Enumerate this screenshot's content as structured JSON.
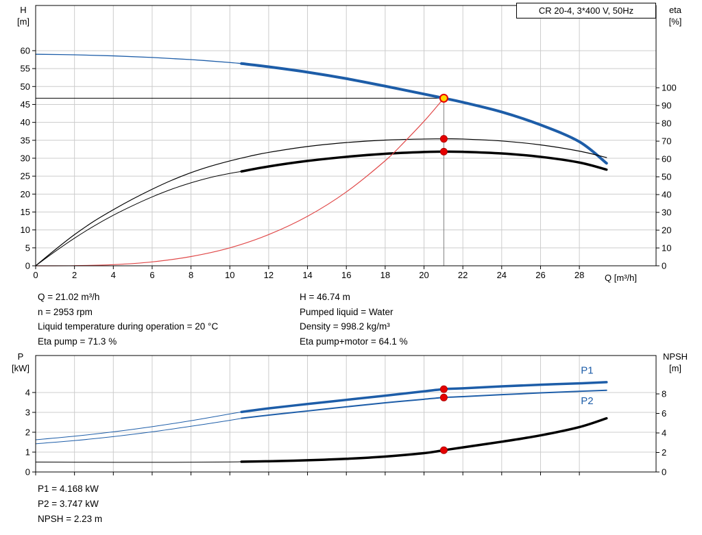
{
  "title_box": "CR 20-4, 3*400 V, 50Hz",
  "colors": {
    "curve_blue": "#1d5da8",
    "curve_black": "#000000",
    "curve_red": "#e04848",
    "dot_red": "#e60000",
    "dot_red_stroke": "#b00000",
    "dot_yellow": "#ffd800",
    "grid": "#cccccc",
    "axis": "#000000",
    "duty_vline": "#808080"
  },
  "axis_corner_labels": {
    "top_left_line1": "H",
    "top_left_line2": "[m]",
    "top_right_line1": "eta",
    "top_right_line2": "[%]",
    "bottom_left_line1": "P",
    "bottom_left_line2": "[kW]",
    "bottom_right_line1": "NPSH",
    "bottom_right_line2": "[m]",
    "x_axis_label": "Q [m³/h]"
  },
  "info_top": {
    "left": [
      "Q = 21.02 m³/h",
      "n = 2953 rpm",
      "Liquid temperature during operation = 20 °C",
      "Eta pump = 71.3 %"
    ],
    "right": [
      "H = 46.74 m",
      "Pumped liquid = Water",
      "Density = 998.2 kg/m³",
      "Eta pump+motor = 64.1 %"
    ]
  },
  "info_bottom": [
    "P1 = 4.168 kW",
    "P2 = 3.747 kW",
    "NPSH = 2.23 m"
  ],
  "chart_data": [
    {
      "id": "top",
      "type": "line",
      "title": "CR 20-4, 3*400 V, 50Hz",
      "x_axis": {
        "label": "Q [m³/h]",
        "ticks": [
          0,
          2,
          4,
          6,
          8,
          10,
          12,
          14,
          16,
          18,
          20,
          22,
          24,
          26,
          28
        ],
        "range": [
          0,
          31.95
        ],
        "tick_labels": true
      },
      "left_axis": {
        "label": "H [m]",
        "ticks": [
          0,
          5,
          10,
          15,
          20,
          25,
          30,
          35,
          40,
          45,
          50,
          55,
          60
        ],
        "range": [
          0,
          72.6
        ]
      },
      "right_axis": {
        "label": "eta [%]",
        "ticks": [
          0,
          10,
          20,
          30,
          40,
          50,
          60,
          70,
          80,
          90,
          100
        ],
        "range": [
          0,
          146.2
        ]
      },
      "grid": true,
      "series": [
        {
          "name": "head-curve-lead",
          "axis": "left",
          "color": "#1d5da8",
          "width": 1.3,
          "points": [
            [
              0,
              59.0
            ],
            [
              2,
              58.85
            ],
            [
              4,
              58.55
            ],
            [
              6,
              58.1
            ],
            [
              8,
              57.5
            ],
            [
              10,
              56.7
            ],
            [
              10.6,
              56.4
            ]
          ]
        },
        {
          "name": "head-curve",
          "axis": "left",
          "color": "#1d5da8",
          "width": 4,
          "points": [
            [
              10.6,
              56.4
            ],
            [
              12,
              55.5
            ],
            [
              14,
              54.0
            ],
            [
              16,
              52.2
            ],
            [
              18,
              50.1
            ],
            [
              20,
              47.9
            ],
            [
              21.02,
              46.74
            ],
            [
              22,
              45.6
            ],
            [
              24,
              42.9
            ],
            [
              26,
              39.3
            ],
            [
              28,
              34.6
            ],
            [
              29.4,
              28.6
            ]
          ]
        },
        {
          "name": "eta-pump",
          "axis": "right",
          "color": "#000000",
          "width": 1.2,
          "points": [
            [
              0,
              0
            ],
            [
              1,
              9
            ],
            [
              2,
              17.5
            ],
            [
              3,
              25
            ],
            [
              4,
              31.5
            ],
            [
              5,
              37.5
            ],
            [
              6,
              43
            ],
            [
              7,
              48
            ],
            [
              8,
              52.3
            ],
            [
              9,
              55.9
            ],
            [
              10,
              58.9
            ],
            [
              11,
              61.5
            ],
            [
              12,
              63.7
            ],
            [
              14,
              67.0
            ],
            [
              16,
              69.2
            ],
            [
              18,
              70.6
            ],
            [
              20,
              71.2
            ],
            [
              21.02,
              71.3
            ],
            [
              22,
              71.2
            ],
            [
              24,
              70.1
            ],
            [
              26,
              67.9
            ],
            [
              28,
              64.4
            ],
            [
              29.4,
              60.8
            ]
          ]
        },
        {
          "name": "eta-pump-motor-lead",
          "axis": "right",
          "color": "#000000",
          "width": 1,
          "points": [
            [
              0,
              0
            ],
            [
              1,
              8
            ],
            [
              2,
              15.5
            ],
            [
              3,
              22.3
            ],
            [
              4,
              28.4
            ],
            [
              5,
              33.8
            ],
            [
              6,
              38.7
            ],
            [
              7,
              43
            ],
            [
              8,
              46.6
            ],
            [
              9,
              49.6
            ],
            [
              10,
              51.9
            ],
            [
              10.6,
              53.0
            ]
          ]
        },
        {
          "name": "eta-pump-motor",
          "axis": "right",
          "color": "#000000",
          "width": 3.5,
          "points": [
            [
              10.6,
              53.0
            ],
            [
              12,
              55.8
            ],
            [
              14,
              58.9
            ],
            [
              16,
              61.2
            ],
            [
              18,
              62.9
            ],
            [
              20,
              63.9
            ],
            [
              21.02,
              64.1
            ],
            [
              22,
              64.0
            ],
            [
              24,
              63.1
            ],
            [
              26,
              61.2
            ],
            [
              28,
              58.0
            ],
            [
              29.4,
              54.0
            ]
          ]
        },
        {
          "name": "system-curve",
          "axis": "left",
          "color": "#e04848",
          "width": 1.2,
          "points": [
            [
              0,
              0
            ],
            [
              2,
              0.04
            ],
            [
              4,
              0.32
            ],
            [
              6,
              1.09
            ],
            [
              8,
              2.58
            ],
            [
              10,
              5.0
            ],
            [
              12,
              8.7
            ],
            [
              14,
              13.8
            ],
            [
              16,
              20.6
            ],
            [
              18,
              29.3
            ],
            [
              19,
              34.6
            ],
            [
              20,
              40.3
            ],
            [
              20.5,
              43.4
            ],
            [
              21.02,
              46.74
            ]
          ]
        }
      ],
      "duty_point": {
        "q": 21.02,
        "value": 46.74,
        "axis": "left"
      },
      "markers": [
        {
          "q": 21.02,
          "value": 71.3,
          "axis": "right"
        },
        {
          "q": 21.02,
          "value": 64.1,
          "axis": "right"
        }
      ]
    },
    {
      "id": "bottom",
      "type": "line",
      "title": "",
      "x_axis": {
        "label": "",
        "ticks": [
          0,
          2,
          4,
          6,
          8,
          10,
          12,
          14,
          16,
          18,
          20,
          22,
          24,
          26,
          28
        ],
        "range": [
          0,
          31.95
        ],
        "tick_labels": false
      },
      "left_axis": {
        "label": "P [kW]",
        "ticks": [
          0,
          1,
          2,
          3,
          4
        ],
        "range": [
          0,
          5.86
        ]
      },
      "right_axis": {
        "label": "NPSH [m]",
        "ticks": [
          0,
          2,
          4,
          6,
          8
        ],
        "range": [
          0,
          11.93
        ]
      },
      "grid": true,
      "series": [
        {
          "name": "p1-lead",
          "axis": "left",
          "color": "#1d5da8",
          "width": 1,
          "points": [
            [
              0,
              1.62
            ],
            [
              2,
              1.8
            ],
            [
              4,
              2.02
            ],
            [
              6,
              2.28
            ],
            [
              8,
              2.58
            ],
            [
              10,
              2.92
            ],
            [
              10.6,
              3.02
            ]
          ]
        },
        {
          "name": "p1",
          "axis": "left",
          "color": "#1d5da8",
          "width": 3.5,
          "points": [
            [
              10.6,
              3.02
            ],
            [
              12,
              3.2
            ],
            [
              14,
              3.42
            ],
            [
              16,
              3.63
            ],
            [
              18,
              3.84
            ],
            [
              20,
              4.06
            ],
            [
              21.02,
              4.168
            ],
            [
              22,
              4.21
            ],
            [
              24,
              4.31
            ],
            [
              26,
              4.39
            ],
            [
              28,
              4.46
            ],
            [
              29.4,
              4.52
            ]
          ]
        },
        {
          "name": "p2-lead",
          "axis": "left",
          "color": "#1d5da8",
          "width": 1,
          "points": [
            [
              0,
              1.42
            ],
            [
              2,
              1.58
            ],
            [
              4,
              1.78
            ],
            [
              6,
              2.02
            ],
            [
              8,
              2.3
            ],
            [
              10,
              2.6
            ],
            [
              10.6,
              2.7
            ]
          ]
        },
        {
          "name": "p2",
          "axis": "left",
          "color": "#1d5da8",
          "width": 2,
          "points": [
            [
              10.6,
              2.7
            ],
            [
              12,
              2.86
            ],
            [
              14,
              3.07
            ],
            [
              16,
              3.28
            ],
            [
              18,
              3.48
            ],
            [
              20,
              3.66
            ],
            [
              21.02,
              3.747
            ],
            [
              22,
              3.79
            ],
            [
              24,
              3.89
            ],
            [
              26,
              3.98
            ],
            [
              28,
              4.06
            ],
            [
              29.4,
              4.11
            ]
          ]
        },
        {
          "name": "npsh-lead",
          "axis": "right",
          "color": "#000000",
          "width": 1,
          "points": [
            [
              0,
              1.02
            ],
            [
              2,
              1.0
            ],
            [
              4,
              0.99
            ],
            [
              6,
              0.99
            ],
            [
              8,
              1.0
            ],
            [
              10,
              1.03
            ],
            [
              10.6,
              1.05
            ]
          ]
        },
        {
          "name": "npsh",
          "axis": "right",
          "color": "#000000",
          "width": 3.5,
          "points": [
            [
              10.6,
              1.05
            ],
            [
              12,
              1.1
            ],
            [
              14,
              1.2
            ],
            [
              16,
              1.35
            ],
            [
              18,
              1.58
            ],
            [
              20,
              1.93
            ],
            [
              21.02,
              2.23
            ],
            [
              22,
              2.52
            ],
            [
              24,
              3.1
            ],
            [
              26,
              3.75
            ],
            [
              28,
              4.6
            ],
            [
              29.4,
              5.5
            ]
          ]
        }
      ],
      "markers": [
        {
          "q": 21.02,
          "value": 4.168,
          "axis": "left"
        },
        {
          "q": 21.02,
          "value": 3.747,
          "axis": "left"
        },
        {
          "q": 21.02,
          "value": 2.23,
          "axis": "right"
        }
      ],
      "series_labels": [
        {
          "text": "P1",
          "q": 28.4,
          "value": 4.95,
          "axis": "left",
          "color": "#1d5da8"
        },
        {
          "text": "P2",
          "q": 28.4,
          "value": 3.42,
          "axis": "left",
          "color": "#1d5da8"
        }
      ]
    }
  ]
}
